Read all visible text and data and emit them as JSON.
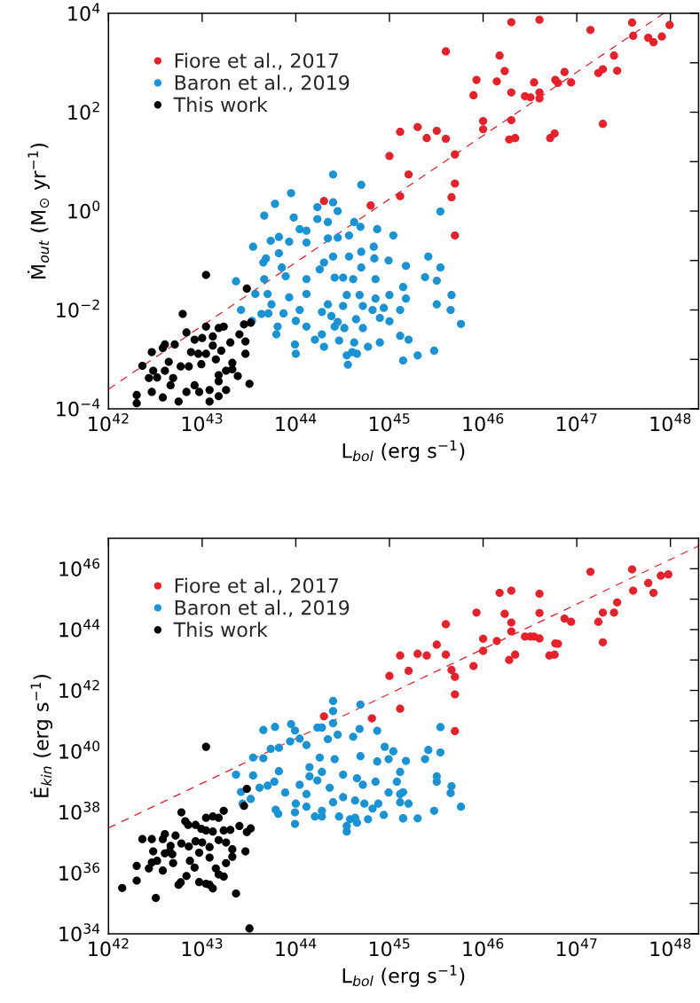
{
  "chart_data": [
    {
      "type": "scatter",
      "xlabel": "L$_{bol}$ (erg s$^{−1}$)",
      "ylabel": "Ṁ$_{out}$ (M$_{⊙}$ yr$^{−1}$)",
      "log": "xy",
      "marker": "circle",
      "legend": "top left",
      "xlim": [
        1e+42,
        2e+48
      ],
      "ylim": [
        0.0001,
        10000.0
      ],
      "xticks": [
        {
          "value": 1e+42,
          "label": "10$^{42}$"
        },
        {
          "value": 1e+43,
          "label": "10$^{43}$"
        },
        {
          "value": 1e+44,
          "label": "10$^{44}$"
        },
        {
          "value": 1e+45,
          "label": "10$^{45}$"
        },
        {
          "value": 1e+46,
          "label": "10$^{46}$"
        },
        {
          "value": 1e+47,
          "label": "10$^{47}$"
        },
        {
          "value": 1e+48,
          "label": "10$^{48}$"
        }
      ],
      "yticks": [
        {
          "value": 0.0001,
          "label": "10$^{−4}$"
        },
        {
          "value": 0.001,
          "label": null
        },
        {
          "value": 0.01,
          "label": "10$^{−2}$"
        },
        {
          "value": 0.1,
          "label": null
        },
        {
          "value": 1,
          "label": "10$^{0}$"
        },
        {
          "value": 10,
          "label": null
        },
        {
          "value": 100,
          "label": "10$^{2}$"
        },
        {
          "value": 1000,
          "label": null
        },
        {
          "value": 10000.0,
          "label": "10$^{4}$"
        }
      ],
      "series": [
        {
          "name": "Fiore et al., 2017",
          "color": "#e8202a",
          "x": [
            2e+44,
            6.3e+44,
            1.3e+45,
            1e+45,
            1.6e+45,
            1.3e+45,
            2e+45,
            2.5e+45,
            3.2e+45,
            4e+45,
            4e+45,
            5e+45,
            5e+45,
            4.6e+45,
            5e+45,
            7.9e+45,
            8.5e+45,
            1e+46,
            1e+46,
            1.4e+46,
            1.5e+46,
            1.7e+46,
            2e+46,
            2e+46,
            2e+46,
            1.9e+46,
            2.2e+46,
            2.8e+46,
            3.2e+46,
            3.5e+46,
            4e+46,
            4e+46,
            4e+46,
            5.2e+46,
            5.8e+46,
            5.9e+46,
            6.3e+46,
            7.4e+46,
            8.7e+46,
            1.4e+47,
            1.7e+47,
            1.9e+47,
            1.9e+47,
            2.5e+47,
            2.7e+47,
            3.9e+47,
            4e+47,
            5.8e+47,
            6.6e+47,
            8.1e+47,
            9.8e+47
          ],
          "values": [
            1.6,
            1.3,
            40,
            13,
            5.5,
            2.0,
            50,
            30,
            42,
            29,
            1700,
            14,
            3.6,
            1.9,
            0.32,
            220,
            450,
            66,
            45,
            420,
            1400,
            680,
            6600,
            250,
            69,
            28,
            30,
            210,
            200,
            400,
            7400,
            250,
            190,
            30,
            37,
            450,
            390,
            650,
            400,
            4600,
            620,
            740,
            58,
            1400,
            690,
            6500,
            3500,
            3200,
            2600,
            3400,
            5800
          ]
        },
        {
          "name": "Baron et al., 2019",
          "color": "#1793d6",
          "x": [
            2.5e+44,
            5e+44,
            8.9e+43,
            6e+43,
            4.6e+43,
            9.5e+43,
            1.7e+44,
            2.5e+44,
            2.8e+44,
            1.1e+44,
            1.7e+44,
            2.2e+44,
            4.2e+44,
            4.9e+44,
            7.4e+44,
            1.3e+44,
            6.6e+43,
            5.4e+43,
            3.5e+43,
            8.5e+43,
            1.3e+44,
            2.2e+44,
            2.8e+44,
            3.7e+44,
            6.6e+43,
            4.8e+43,
            4.5e+43,
            4.6e+43,
            2.3e+43,
            2.6e+43,
            3.4e+43,
            3.7e+43,
            5e+43,
            4.3e+43,
            5.1e+43,
            6.2e+43,
            6.4e+43,
            5.5e+43,
            7.1e+43,
            7.8e+43,
            8.5e+43,
            7.4e+43,
            9.8e+43,
            1e+44,
            1e+44,
            1.1e+44,
            1.3e+44,
            1.3e+44,
            1.3e+44,
            1.6e+44,
            2e+44,
            1.9e+44,
            1.8e+44,
            2e+44,
            2.5e+44,
            2.6e+44,
            1.9e+44,
            2.2e+44,
            2.4e+44,
            2.8e+44,
            2.9e+44,
            2.6e+44,
            3.3e+44,
            3.2e+44,
            3.5e+44,
            3.2e+44,
            3.7e+44,
            4.1e+44,
            3.6e+44,
            3.5e+44,
            4e+44,
            4.5e+44,
            4.2e+44,
            4.4e+44,
            5e+44,
            5e+44,
            4.8e+44,
            5.2e+44,
            5.2e+44,
            5.9e+44,
            6.6e+44,
            6.8e+44,
            6.9e+44,
            7.1e+44,
            7.1e+44,
            7.9e+44,
            7.9e+44,
            8.7e+44,
            9.8e+44,
            1e+45,
            1.1e+45,
            1e+45,
            3.5e+45,
            2.6e+45,
            3.5e+45,
            2.4e+45,
            3.2e+45,
            4.6e+45,
            3.2e+45,
            4.5e+45,
            5.8e+45,
            3e+45,
            2e+45,
            1.6e+45,
            1.5e+45,
            1.4e+45,
            1.5e+45,
            1.3e+45,
            1.3e+45,
            1.4e+45
          ],
          "values": [
            5.5,
            3.4,
            2.3,
            1.4,
            0.81,
            0.74,
            1.2,
            1.5,
            1.0,
            0.43,
            0.69,
            0.6,
            0.6,
            0.48,
            0.43,
            0.4,
            0.3,
            0.25,
            0.19,
            0.24,
            0.23,
            0.28,
            0.29,
            0.32,
            0.14,
            0.11,
            0.091,
            0.042,
            0.038,
            0.01,
            0.006,
            0.021,
            0.021,
            0.0083,
            0.0085,
            0.0032,
            0.0046,
            0.013,
            0.072,
            0.048,
            0.018,
            0.0085,
            0.002,
            0.0013,
            0.006,
            0.01,
            0.0046,
            0.042,
            0.021,
            0.0025,
            0.0018,
            0.0032,
            0.066,
            0.091,
            0.12,
            0.045,
            0.0091,
            0.013,
            0.0075,
            0.0057,
            0.0024,
            0.0046,
            0.0043,
            0.012,
            0.02,
            0.045,
            0.12,
            0.042,
            0.00078,
            0.0012,
            0.0014,
            0.0013,
            0.0022,
            0.0065,
            0.072,
            0.15,
            0.02,
            0.012,
            0.0043,
            0.0018,
            0.01,
            0.19,
            0.11,
            0.042,
            0.017,
            0.0069,
            0.0022,
            0.011,
            0.1,
            0.0059,
            0.32,
            0.02,
            0.98,
            0.12,
            0.072,
            0.046,
            0.039,
            0.02,
            0.013,
            0.01,
            0.0052,
            0.0015,
            0.0012,
            0.0025,
            0.078,
            0.029,
            0.017,
            0.01,
            0.003,
            0.00095
          ]
        },
        {
          "name": "This work",
          "color": "#000000",
          "x": [
            1.1e+43,
            3e+43,
            6.2e+42,
            1.1e+43,
            2.8e+43,
            3.3e+43,
            1.7e+43,
            2.5e+43,
            2.9e+43,
            2.9e+43,
            2e+43,
            6.8e+42,
            5.1e+42,
            4e+42,
            3.8e+42,
            2.9e+42,
            2.3e+42,
            2e+42,
            2e+42,
            2.9e+42,
            2.7e+42,
            3e+42,
            3.3e+42,
            3.8e+42,
            4e+42,
            4.4e+42,
            4.6e+42,
            4.9e+42,
            5.6e+42,
            5.9e+42,
            6.8e+42,
            7.2e+42,
            7.6e+42,
            8.3e+42,
            8.3e+42,
            9.3e+42,
            9.8e+42,
            1e+43,
            1.1e+43,
            1.2e+43,
            1.2e+43,
            1.3e+43,
            1.3e+43,
            1.4e+43,
            1.5e+43,
            1.5e+43,
            1.6e+43,
            1.5e+43,
            1.8e+43,
            1.8e+43,
            2.1e+43,
            2.1e+43,
            2.4e+43,
            3.2e+43,
            1.5e+43,
            9.1e+42
          ],
          "values": [
            0.051,
            0.027,
            0.0083,
            0.0046,
            0.0051,
            0.0055,
            0.0046,
            0.0032,
            0.0023,
            0.0013,
            0.0022,
            0.0035,
            0.002,
            0.002,
            0.0017,
            0.0014,
            0.00074,
            0.00019,
            0.00013,
            0.00022,
            0.00042,
            0.00059,
            0.00043,
            0.00017,
            0.00059,
            0.00089,
            0.0003,
            0.00042,
            0.00014,
            0.00072,
            0.00022,
            0.00072,
            0.0014,
            0.0003,
            0.0025,
            0.00022,
            0.0008,
            0.0027,
            0.0013,
            0.00024,
            0.00014,
            0.0029,
            0.0019,
            0.001,
            0.00048,
            0.00018,
            0.0015,
            0.0043,
            0.00024,
            0.00059,
            0.00085,
            0.00063,
            0.00046,
            0.00032,
            0.00036,
            0.0013
          ]
        },
        {
          "type": "line",
          "color": "#e8202a",
          "line_style": "dashed",
          "marker": "none",
          "x": [
            1e+42,
            8.5e+47
          ],
          "values": [
            0.00025,
            10000.0
          ]
        }
      ]
    },
    {
      "type": "scatter",
      "xlabel": "L$_{bol}$ (erg s$^{−1}$)",
      "ylabel": "Ė$_{kin}$ (erg s$^{−1}$)",
      "log": "xy",
      "marker": "circle",
      "legend": "top left",
      "xlim": [
        1e+42,
        2e+48
      ],
      "ylim": [
        1e+34,
        1e+47
      ],
      "xticks": [
        {
          "value": 1e+42,
          "label": "10$^{42}$"
        },
        {
          "value": 1e+43,
          "label": "10$^{43}$"
        },
        {
          "value": 1e+44,
          "label": "10$^{44}$"
        },
        {
          "value": 1e+45,
          "label": "10$^{45}$"
        },
        {
          "value": 1e+46,
          "label": "10$^{46}$"
        },
        {
          "value": 1e+47,
          "label": "10$^{47}$"
        },
        {
          "value": 1e+48,
          "label": "10$^{48}$"
        }
      ],
      "yticks": [
        {
          "value": 1e+34,
          "label": "10$^{34}$"
        },
        {
          "value": 1e+35,
          "label": null
        },
        {
          "value": 1e+36,
          "label": "10$^{36}$"
        },
        {
          "value": 1e+37,
          "label": null
        },
        {
          "value": 1e+38,
          "label": "10$^{38}$"
        },
        {
          "value": 1e+39,
          "label": null
        },
        {
          "value": 1e+40,
          "label": "10$^{40}$"
        },
        {
          "value": 1e+41,
          "label": null
        },
        {
          "value": 1e+42,
          "label": "10$^{42}$"
        },
        {
          "value": 1e+43,
          "label": null
        },
        {
          "value": 1e+44,
          "label": "10$^{44}$"
        },
        {
          "value": 1e+45,
          "label": null
        },
        {
          "value": 1e+46,
          "label": "10$^{46}$"
        }
      ],
      "series": [
        {
          "name": "Fiore et al., 2017",
          "color": "#e8202a",
          "x": [
            2e+44,
            6.5e+44,
            1e+45,
            1.3e+45,
            1.3e+45,
            1.6e+45,
            2e+45,
            2.5e+45,
            3.2e+45,
            4e+45,
            4e+45,
            4.6e+45,
            5e+45,
            5e+45,
            5e+45,
            7.9e+45,
            8.5e+45,
            1e+46,
            1e+46,
            1.4e+46,
            1.5e+46,
            1.7e+46,
            2e+46,
            2e+46,
            2e+46,
            1.9e+46,
            2.2e+46,
            2.8e+46,
            3.2e+46,
            3.5e+46,
            4e+46,
            4e+46,
            4e+46,
            5.1e+46,
            5.8e+46,
            5.9e+46,
            6.3e+46,
            7.4e+46,
            8.7e+46,
            1.4e+47,
            1.7e+47,
            1.9e+47,
            1.9e+47,
            2.5e+47,
            2.7e+47,
            3.9e+47,
            4e+47,
            5.8e+47,
            6.6e+47,
            7.9e+47,
            9.5e+47
          ],
          "values": [
            1.4e+41,
            1.2e+41,
            3e+42,
            1.4e+43,
            2.5e+41,
            4.4e+42,
            1.6e+43,
            1.4e+43,
            3.2e+43,
            1.5e+44,
            1.5e+43,
            4.7e+42,
            2.8e+42,
            7.4e+41,
            4.6e+40,
            6.3e+42,
            3.6e+44,
            5e+43,
            2e+43,
            4.2e+43,
            1.6e+45,
            3.3e+44,
            1.9e+45,
            1.7e+44,
            8.7e+43,
            1e+43,
            1.5e+43,
            5.9e+43,
            5.9e+43,
            5.9e+43,
            5.1e+43,
            3.5e+44,
            1.5e+45,
            1.4e+43,
            1.5e+43,
            3.5e+43,
            3.4e+43,
            2.3e+44,
            1.8e+44,
            7.9e+45,
            1.8e+44,
            3.6e+44,
            3.8e+43,
            3.6e+44,
            7.8e+44,
            9.5e+45,
            1.9e+45,
            3.4e+45,
            1.6e+45,
            5.9e+45,
            6.5e+45
          ]
        },
        {
          "name": "Baron et al., 2019",
          "color": "#1793d6",
          "x": [
            2.5e+44,
            2.5e+44,
            2.5e+44,
            4.9e+44,
            8.9e+43,
            6e+43,
            4.5e+43,
            9.8e+43,
            1.7e+44,
            1.9e+44,
            2.2e+44,
            2.8e+44,
            4.1e+44,
            4.8e+44,
            7.4e+44,
            8.7e+43,
            1.1e+44,
            1.3e+44,
            5.4e+43,
            6.6e+43,
            3.5e+43,
            4.5e+43,
            2.3e+43,
            2.6e+43,
            2.7e+43,
            3.3e+43,
            3.5e+43,
            4.1e+43,
            5e+43,
            5.9e+43,
            6.6e+43,
            6.1e+43,
            6.5e+43,
            7.7e+43,
            9.8e+43,
            9.8e+43,
            1e+44,
            1.1e+44,
            1.3e+44,
            1.3e+44,
            1.4e+44,
            1.6e+44,
            1.9e+44,
            1.9e+44,
            1.8e+44,
            1.9e+44,
            2.3e+44,
            2.5e+44,
            2.9e+44,
            2.6e+44,
            3.2e+44,
            3.2e+44,
            3.5e+44,
            3.5e+44,
            3.8e+44,
            4.3e+44,
            4.5e+44,
            4.3e+44,
            4.9e+44,
            5.2e+44,
            5.4e+44,
            5.9e+44,
            6.6e+44,
            7.1e+44,
            7.4e+44,
            7.6e+44,
            8.7e+44,
            8.9e+44,
            9.8e+44,
            9.8e+44,
            1.1e+45,
            1.3e+45,
            1.2e+45,
            1.3e+45,
            1.4e+45,
            1.4e+45,
            1.4e+44,
            1.7e+44,
            4.5e+44,
            3.5e+45,
            2.6e+45,
            3.5e+45,
            2.4e+45,
            3.2e+45,
            3.2e+45,
            4.6e+45,
            4.5e+45,
            5.8e+45,
            3e+45,
            2e+45,
            1.4e+45,
            1.6e+45,
            1.5e+45,
            1.3e+45
          ],
          "values": [
            4.5e+41,
            2.1e+41,
            8.3e+40,
            3.4e+41,
            7.8e+40,
            6.3e+40,
            5e+40,
            4.8e+40,
            6e+40,
            6e+40,
            2.5e+40,
            3.5e+40,
            3e+40,
            5.4e+40,
            4.7e+40,
            2.1e+40,
            2.6e+40,
            1.6e+40,
            1.2e+40,
            1.3e+40,
            6.2e+39,
            5.9e+39,
            1.7e+39,
            4.6e+38,
            1.9e+38,
            2.7e+38,
            1.6e+39,
            6.3e+38,
            7.4e+38,
            1e+39,
            2.2e+39,
            1.2e+38,
            8.7e+37,
            4.4e+38,
            4.1e+37,
            9.8e+37,
            1.9e+38,
            7.9e+38,
            3.9e+38,
            1.5e+38,
            1.5e+39,
            7.2e+37,
            7.2e+37,
            1.1e+38,
            6.2e+39,
            2.1e+39,
            6.3e+38,
            2.1e+38,
            7.2e+37,
            5.5e+39,
            1.7e+39,
            3.1e+38,
            2.3e+37,
            3.5e+37,
            5.8e+37,
            6.5e+37,
            4.5e+37,
            2.4e+38,
            6.9e+39,
            7.9e+38,
            1.9e+38,
            5.8e+37,
            1.3e+38,
            1e+39,
            4.6e+39,
            1.9e+38,
            8.1e+37,
            1.4e+40,
            5.5e+39,
            4.4e+38,
            1e+40,
            2.1e+39,
            1e+39,
            2.1e+38,
            6.2e+37,
            4.5e+38,
            3e+39,
            1.1e+39,
            1.3e+39,
            6.2e+40,
            1.1e+40,
            9.1e+39,
            5.5e+39,
            1.5e+39,
            1e+39,
            7.1e+38,
            4.2e+38,
            1.5e+38,
            1.1e+38,
            6.2e+37,
            6.2e+37,
            1.9e+38,
            4.8e+39,
            3.9e+38
          ]
        },
        {
          "name": "This work",
          "color": "#000000",
          "x": [
            1.1e+43,
            3e+43,
            2.8e+43,
            3.2e+43,
            2.3e+43,
            2.9e+43,
            3e+43,
            3.3e+43,
            2.5e+43,
            1.7e+43,
            1.3e+43,
            1.1e+43,
            1.5e+43,
            6e+42,
            6.6e+42,
            7.1e+42,
            8.5e+42,
            9.8e+42,
            1.1e+43,
            1.3e+43,
            1.7e+43,
            2e+43,
            1.8e+43,
            1.5e+43,
            1.2e+43,
            1e+43,
            8.5e+42,
            7.2e+42,
            6e+42,
            5.2e+42,
            4e+42,
            3.8e+42,
            4.6e+42,
            4.5e+42,
            4e+42,
            4.8e+42,
            4.9e+42,
            3e+42,
            2.9e+42,
            2.7e+42,
            3.8e+42,
            3.3e+42,
            2.9e+42,
            2.3e+42,
            2e+42,
            2e+42,
            1.4e+42,
            3.2e+42,
            5.6e+42,
            5.9e+42,
            6.8e+42,
            8.3e+42,
            9.3e+42,
            1.1e+43,
            1.2e+43,
            1.3e+43,
            1.5e+43,
            1.4e+43,
            1.7e+43,
            1.8e+43,
            2.1e+43,
            2.1e+43,
            1.2e+43,
            9.3e+42,
            7.4e+42
          ],
          "values": [
            1.4e+40,
            5.8e+38,
            1.6e+38,
            1.5e+34,
            2.1e+35,
            5.1e+36,
            2.2e+37,
            2.9e+37,
            3.5e+37,
            1.1e+38,
            7.2e+37,
            6.5e+37,
            6.5e+37,
            9.8e+37,
            5e+37,
            3.8e+37,
            3.8e+37,
            2.8e+37,
            2.5e+37,
            2.3e+37,
            2.5e+37,
            2.6e+37,
            1e+37,
            1.2e+37,
            7.1e+36,
            1e+37,
            1.1e+37,
            7.4e+36,
            9.3e+36,
            1.7e+37,
            1.9e+37,
            1.3e+37,
            7.8e+36,
            5.1e+36,
            4.4e+36,
            4.1e+36,
            2.1e+36,
            5.1e+36,
            2.2e+36,
            1.4e+36,
            1.2e+36,
            2.5e+36,
            1.3e+37,
            1.3e+37,
            1.7e+36,
            5.6e+35,
            3.2e+35,
            1.5e+35,
            4.1e+35,
            4.9e+35,
            7.9e+35,
            1.5e+36,
            5e+35,
            4.4e+35,
            4.1e+35,
            3.1e+35,
            8.9e+35,
            1.4e+36,
            7.6e+35,
            2.1e+36,
            6e+36,
            3.4e+36,
            3.2e+36,
            4.6e+36,
            2.5e+36
          ]
        },
        {
          "type": "line",
          "color": "#e8202a",
          "line_style": "dashed",
          "marker": "none",
          "x": [
            1e+42,
            2e+48
          ],
          "values": [
            3e+37,
            5.6e+46
          ]
        }
      ]
    }
  ]
}
